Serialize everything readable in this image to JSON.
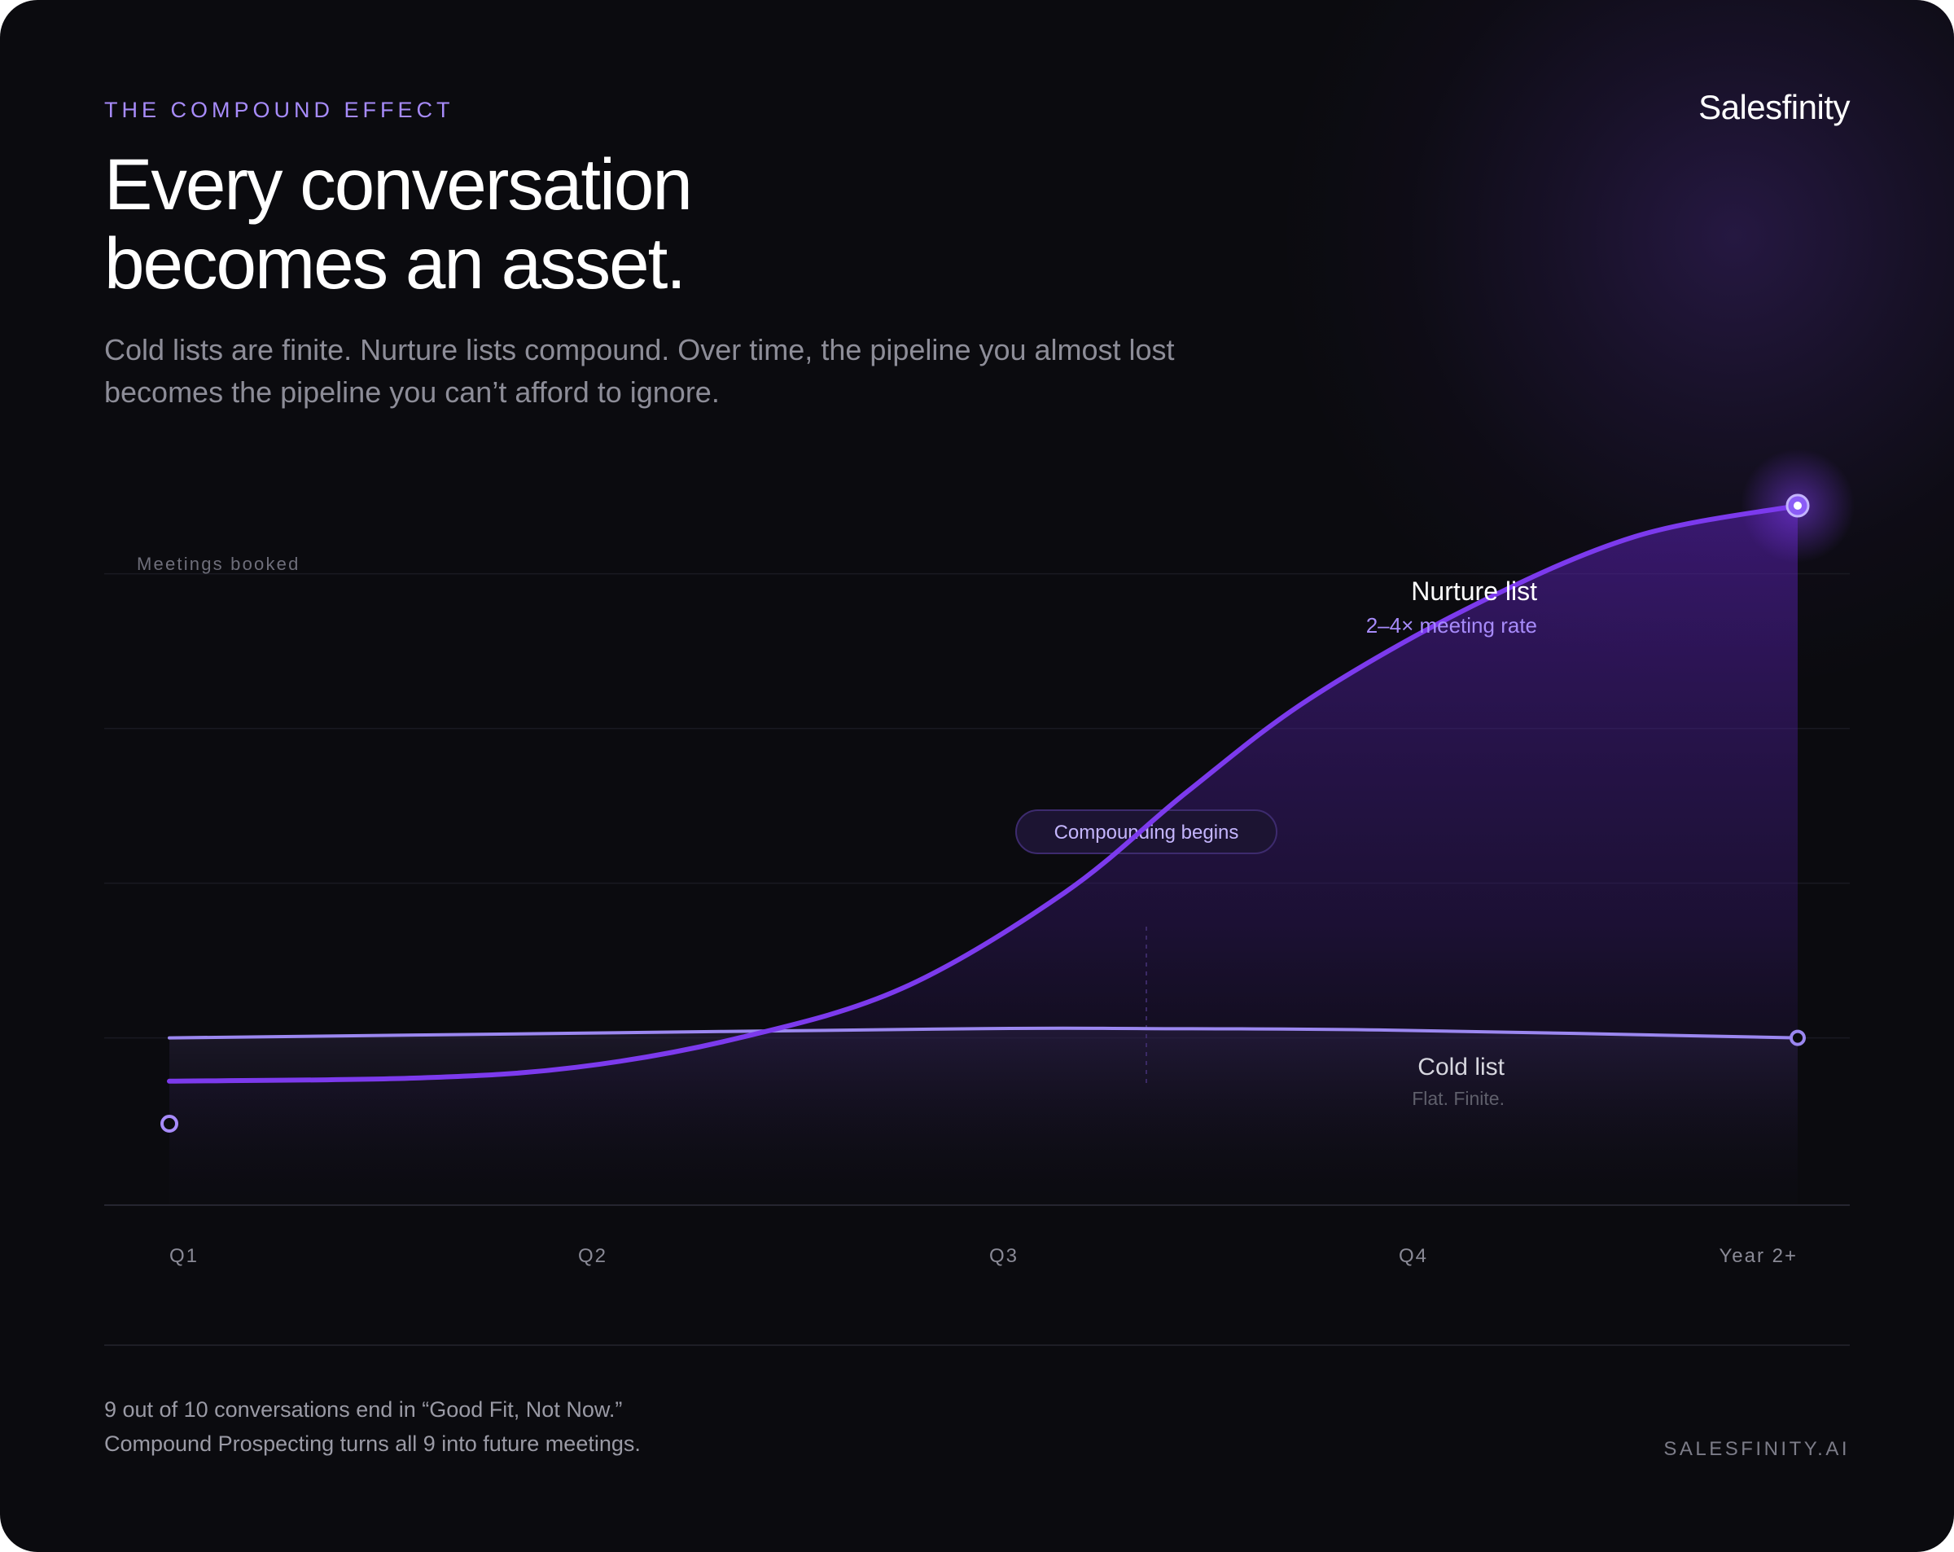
{
  "header": {
    "eyebrow": "THE COMPOUND EFFECT",
    "brand": "Salesfinity",
    "headline_line1": "Every conversation",
    "headline_line2": "becomes an asset.",
    "subtitle_line1": "Cold lists are finite. Nurture lists compound. Over time, the pipeline you almost lost",
    "subtitle_line2": "becomes the pipeline you can’t afford to ignore."
  },
  "colors": {
    "background": "#0b0b0f",
    "accent": "#7c3aed",
    "accent_light": "#a78bfa",
    "cold_line": "#9b87f0"
  },
  "chart_data": {
    "type": "line",
    "ylabel": "Meetings booked",
    "categories": [
      "Q1",
      "Q2",
      "Q3",
      "Q4",
      "Year 2+"
    ],
    "x": [
      0,
      1,
      2,
      3,
      4
    ],
    "ylim": [
      0,
      4
    ],
    "grid": true,
    "legend": "inline-labels",
    "series": [
      {
        "name": "Nurture list",
        "sublabel": "2–4× meeting rate",
        "x": [
          0,
          0.6,
          1.0,
          1.4,
          1.8,
          2.2,
          2.5,
          2.8,
          3.2,
          3.6,
          4.0
        ],
        "values": [
          0.38,
          0.4,
          0.47,
          0.66,
          0.98,
          1.6,
          2.25,
          2.85,
          3.45,
          3.9,
          4.1
        ]
      },
      {
        "name": "Cold list",
        "sublabel": "Flat. Finite.",
        "x": [
          0,
          1.0,
          2.0,
          2.4,
          3.0,
          4.0
        ],
        "values": [
          0.66,
          0.69,
          0.72,
          0.72,
          0.71,
          0.66
        ]
      }
    ],
    "annotations": [
      {
        "text": "Compounding begins",
        "x": 2.4
      }
    ]
  },
  "footer": {
    "line1": "9 out of 10 conversations end in “Good Fit, Not Now.”",
    "line2": "Compound Prospecting turns all 9 into future meetings.",
    "site": "SALESFINITY.AI"
  }
}
